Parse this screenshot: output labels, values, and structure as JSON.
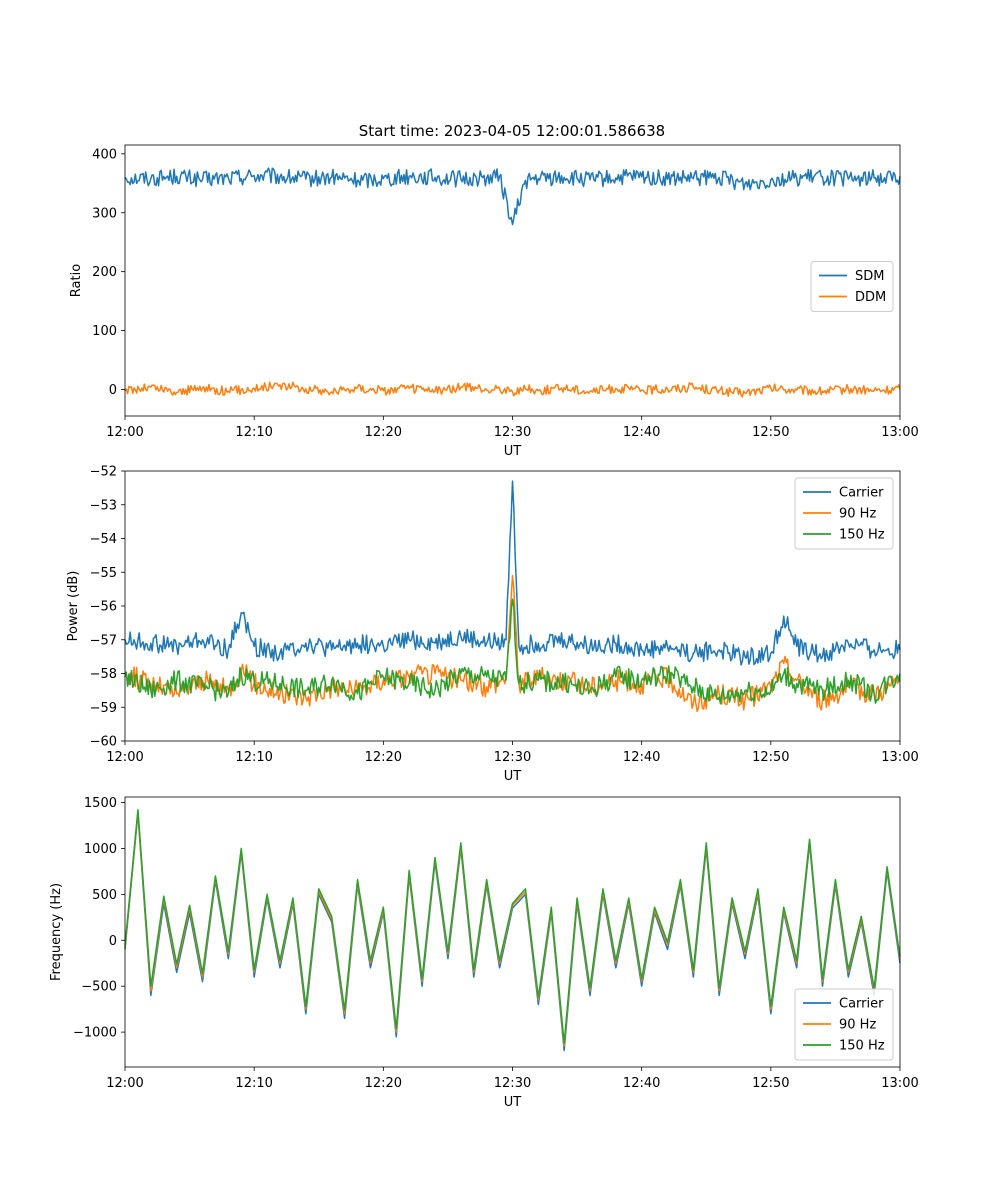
{
  "figure": {
    "title": "Start time: 2023-04-05 12:00:01.586638"
  },
  "colors": {
    "blue": "#1f77b4",
    "orange": "#ff7f0e",
    "green": "#2ca02c",
    "axes": "#000000",
    "legend_border": "#cccccc"
  },
  "chart_data": [
    {
      "type": "line",
      "title": "Start time: 2023-04-05 12:00:01.586638",
      "xlabel": "UT",
      "ylabel": "Ratio",
      "x_range": [
        "12:00",
        "13:00"
      ],
      "xticks": [
        "12:00",
        "12:10",
        "12:20",
        "12:30",
        "12:40",
        "12:50",
        "13:00"
      ],
      "xtick_minutes": [
        0,
        10,
        20,
        30,
        40,
        50,
        60
      ],
      "ylim": [
        -45,
        415
      ],
      "yticks": [
        0,
        100,
        200,
        300,
        400
      ],
      "ytick_labels": [
        "0",
        "100",
        "200",
        "300",
        "400"
      ],
      "legend_position": "center-right",
      "grid": false,
      "x_minutes": [
        0,
        2,
        4,
        6,
        8,
        10,
        12,
        14,
        16,
        18,
        20,
        22,
        24,
        26,
        28,
        29,
        30,
        31,
        32,
        34,
        36,
        38,
        40,
        42,
        44,
        46,
        48,
        50,
        52,
        54,
        56,
        58,
        60
      ],
      "series": [
        {
          "name": "SDM",
          "color": "#1f77b4",
          "values": [
            360,
            358,
            362,
            356,
            359,
            363,
            361,
            357,
            360,
            355,
            358,
            362,
            360,
            357,
            359,
            362,
            280,
            355,
            358,
            360,
            356,
            359,
            361,
            357,
            358,
            360,
            349,
            356,
            359,
            361,
            357,
            359,
            362
          ]
        },
        {
          "name": "DDM",
          "color": "#ff7f0e",
          "values": [
            -2,
            4,
            -5,
            3,
            -3,
            2,
            8,
            1,
            -4,
            3,
            -2,
            2,
            -3,
            4,
            -1,
            2,
            -4,
            1,
            -2,
            3,
            -3,
            2,
            -1,
            1,
            4,
            -2,
            -6,
            2,
            -1,
            -3,
            1,
            -2,
            0
          ]
        }
      ]
    },
    {
      "type": "line",
      "title": "",
      "xlabel": "UT",
      "ylabel": "Power (dB)",
      "x_range": [
        "12:00",
        "13:00"
      ],
      "xticks": [
        "12:00",
        "12:10",
        "12:20",
        "12:30",
        "12:40",
        "12:50",
        "13:00"
      ],
      "xtick_minutes": [
        0,
        10,
        20,
        30,
        40,
        50,
        60
      ],
      "ylim": [
        -60,
        -52
      ],
      "yticks": [
        -60,
        -59,
        -58,
        -57,
        -56,
        -55,
        -54,
        -53,
        -52
      ],
      "ytick_labels": [
        "−60",
        "−59",
        "−58",
        "−57",
        "−56",
        "−55",
        "−54",
        "−53",
        "−52"
      ],
      "legend_position": "top-right",
      "grid": false,
      "x_minutes": [
        0,
        2,
        4,
        6,
        8,
        9,
        10,
        12,
        14,
        16,
        18,
        20,
        22,
        24,
        26,
        28,
        29.5,
        30,
        30.5,
        32,
        34,
        36,
        38,
        40,
        42,
        44,
        46,
        48,
        50,
        51,
        52,
        54,
        56,
        58,
        60
      ],
      "series": [
        {
          "name": "Carrier",
          "color": "#1f77b4",
          "values": [
            -57.0,
            -57.1,
            -57.2,
            -57.0,
            -57.3,
            -56.2,
            -57.2,
            -57.4,
            -57.1,
            -57.3,
            -57.1,
            -57.2,
            -57.0,
            -57.1,
            -56.9,
            -57.1,
            -57.0,
            -52.3,
            -57.2,
            -57.1,
            -57.0,
            -57.2,
            -57.1,
            -57.3,
            -57.2,
            -57.4,
            -57.3,
            -57.5,
            -57.4,
            -56.3,
            -57.2,
            -57.5,
            -57.1,
            -57.3,
            -57.3
          ]
        },
        {
          "name": "90 Hz",
          "color": "#ff7f0e",
          "values": [
            -58.0,
            -58.3,
            -58.6,
            -58.2,
            -58.5,
            -57.9,
            -58.3,
            -58.6,
            -58.7,
            -58.4,
            -58.5,
            -58.2,
            -58.1,
            -58.0,
            -58.2,
            -58.4,
            -58.1,
            -55.1,
            -58.3,
            -58.1,
            -58.2,
            -58.4,
            -58.2,
            -58.3,
            -58.1,
            -58.9,
            -58.6,
            -58.8,
            -58.4,
            -57.7,
            -58.2,
            -58.8,
            -58.4,
            -58.6,
            -58.2
          ]
        },
        {
          "name": "150 Hz",
          "color": "#2ca02c",
          "values": [
            -58.1,
            -58.5,
            -58.2,
            -58.4,
            -58.6,
            -58.0,
            -58.2,
            -58.3,
            -58.5,
            -58.2,
            -58.6,
            -58.1,
            -58.3,
            -58.5,
            -58.0,
            -58.1,
            -58.2,
            -55.8,
            -58.3,
            -58.2,
            -58.3,
            -58.5,
            -58.1,
            -58.2,
            -58.0,
            -58.4,
            -58.7,
            -58.5,
            -58.5,
            -58.0,
            -58.3,
            -58.5,
            -58.2,
            -58.6,
            -58.0
          ]
        }
      ]
    },
    {
      "type": "line",
      "title": "",
      "xlabel": "UT",
      "ylabel": "Frequency (Hz)",
      "x_range": [
        "12:00",
        "13:00"
      ],
      "xticks": [
        "12:00",
        "12:10",
        "12:20",
        "12:30",
        "12:40",
        "12:50",
        "13:00"
      ],
      "xtick_minutes": [
        0,
        10,
        20,
        30,
        40,
        50,
        60
      ],
      "ylim": [
        -1380,
        1560
      ],
      "yticks": [
        -1000,
        -500,
        0,
        500,
        1000,
        1500
      ],
      "ytick_labels": [
        "−1000",
        "−500",
        "0",
        "500",
        "1000",
        "1500"
      ],
      "legend_position": "bottom-right",
      "grid": false,
      "x_minutes": [
        0,
        1,
        2,
        3,
        4,
        5,
        6,
        7,
        8,
        9,
        10,
        11,
        12,
        13,
        14,
        15,
        16,
        17,
        18,
        19,
        20,
        21,
        22,
        23,
        24,
        25,
        26,
        27,
        28,
        29,
        30,
        31,
        32,
        33,
        34,
        35,
        36,
        37,
        38,
        39,
        40,
        41,
        42,
        43,
        44,
        45,
        46,
        47,
        48,
        49,
        50,
        51,
        52,
        53,
        54,
        55,
        56,
        57,
        58,
        59,
        60
      ],
      "series": [
        {
          "name": "Carrier",
          "color": "#1f77b4",
          "values": [
            -100,
            1380,
            -600,
            400,
            -350,
            300,
            -450,
            650,
            -200,
            950,
            -400,
            450,
            -300,
            400,
            -800,
            500,
            200,
            -850,
            600,
            -300,
            300,
            -1050,
            700,
            -500,
            850,
            -200,
            1000,
            -400,
            600,
            -300,
            350,
            500,
            -700,
            300,
            -1200,
            400,
            -600,
            500,
            -300,
            400,
            -500,
            300,
            -100,
            600,
            -400,
            1000,
            -600,
            400,
            -200,
            500,
            -800,
            300,
            -300,
            1050,
            -500,
            600,
            -400,
            200,
            -600,
            750,
            -250
          ]
        },
        {
          "name": "90 Hz",
          "color": "#ff7f0e",
          "values": [
            -80,
            1400,
            -550,
            450,
            -300,
            350,
            -400,
            680,
            -150,
            980,
            -350,
            480,
            -250,
            430,
            -750,
            530,
            230,
            -800,
            630,
            -250,
            330,
            -1000,
            730,
            -450,
            880,
            -150,
            1030,
            -350,
            630,
            -250,
            380,
            530,
            -650,
            330,
            -1150,
            430,
            -550,
            530,
            -250,
            430,
            -450,
            330,
            -50,
            630,
            -350,
            1030,
            -550,
            430,
            -150,
            530,
            -750,
            330,
            -250,
            1080,
            -450,
            630,
            -350,
            230,
            -550,
            780,
            -200
          ]
        },
        {
          "name": "150 Hz",
          "color": "#2ca02c",
          "values": [
            -60,
            1420,
            -500,
            480,
            -260,
            380,
            -360,
            700,
            -120,
            1000,
            -320,
            500,
            -220,
            460,
            -720,
            560,
            260,
            -760,
            660,
            -220,
            360,
            -960,
            760,
            -420,
            900,
            -120,
            1060,
            -320,
            660,
            -220,
            400,
            560,
            -620,
            360,
            -1120,
            460,
            -520,
            560,
            -220,
            460,
            -420,
            360,
            -20,
            660,
            -320,
            1060,
            -520,
            460,
            -120,
            560,
            -720,
            360,
            -220,
            1100,
            -420,
            660,
            -320,
            260,
            -520,
            800,
            -180
          ]
        }
      ]
    }
  ]
}
